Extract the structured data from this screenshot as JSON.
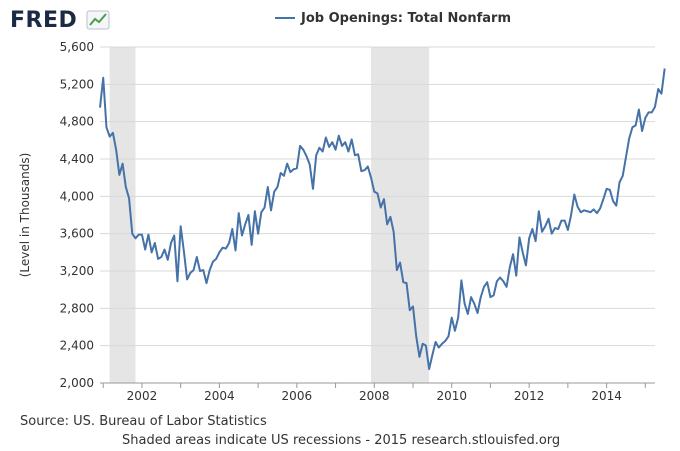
{
  "logo": {
    "text": "FRED",
    "icon": "line-chart-icon"
  },
  "legend": {
    "label": "Job Openings: Total Nonfarm",
    "color": "#4572a7"
  },
  "source_text": "Source: US. Bureau of Labor Statistics",
  "note_text": "Shaded areas indicate US recessions - 2015 research.stlouisfed.org",
  "chart_data": {
    "type": "line",
    "title": "",
    "xlabel": "",
    "ylabel": "(Level in Thousands)",
    "ylim": [
      2000,
      5600
    ],
    "yticks": [
      2000,
      2400,
      2800,
      3200,
      3600,
      4000,
      4400,
      4800,
      5200,
      5600
    ],
    "ytick_labels": [
      "2,000",
      "2,400",
      "2,800",
      "3,200",
      "3,600",
      "4,000",
      "4,400",
      "4,800",
      "5,200",
      "5,600"
    ],
    "xlim": [
      "2000-12",
      "2015-04"
    ],
    "xticks": [
      "2002",
      "2004",
      "2006",
      "2008",
      "2010",
      "2012",
      "2014"
    ],
    "grid": "horizontal",
    "line_color": "#4572a7",
    "recession_color": "#e5e5e5",
    "recessions": [
      {
        "start": "2001-03",
        "end": "2001-11"
      },
      {
        "start": "2007-12",
        "end": "2009-06"
      }
    ],
    "series": [
      {
        "name": "Job Openings: Total Nonfarm",
        "start": "2000-12",
        "frequency": "monthly",
        "values": [
          4950,
          5270,
          4740,
          4640,
          4680,
          4500,
          4230,
          4350,
          4100,
          3980,
          3600,
          3550,
          3590,
          3590,
          3430,
          3590,
          3400,
          3500,
          3330,
          3350,
          3430,
          3320,
          3500,
          3580,
          3090,
          3680,
          3410,
          3110,
          3180,
          3210,
          3350,
          3200,
          3210,
          3070,
          3210,
          3300,
          3330,
          3400,
          3450,
          3440,
          3500,
          3650,
          3420,
          3820,
          3580,
          3700,
          3800,
          3480,
          3840,
          3600,
          3830,
          3880,
          4100,
          3850,
          4050,
          4100,
          4250,
          4220,
          4350,
          4260,
          4290,
          4300,
          4540,
          4500,
          4430,
          4340,
          4080,
          4440,
          4520,
          4480,
          4630,
          4530,
          4580,
          4500,
          4650,
          4540,
          4580,
          4480,
          4610,
          4440,
          4450,
          4270,
          4280,
          4320,
          4200,
          4050,
          4030,
          3880,
          3970,
          3700,
          3780,
          3620,
          3210,
          3290,
          3080,
          3070,
          2780,
          2820,
          2500,
          2280,
          2420,
          2400,
          2150,
          2300,
          2440,
          2380,
          2420,
          2450,
          2500,
          2700,
          2560,
          2700,
          3100,
          2850,
          2740,
          2920,
          2850,
          2750,
          2920,
          3030,
          3080,
          2920,
          2940,
          3090,
          3130,
          3090,
          3030,
          3240,
          3380,
          3150,
          3560,
          3400,
          3260,
          3550,
          3650,
          3520,
          3840,
          3620,
          3680,
          3760,
          3600,
          3660,
          3650,
          3740,
          3740,
          3640,
          3800,
          4020,
          3890,
          3830,
          3850,
          3840,
          3830,
          3860,
          3820,
          3870,
          3970,
          4080,
          4070,
          3950,
          3900,
          4150,
          4220,
          4420,
          4620,
          4740,
          4760,
          4930,
          4700,
          4840,
          4900,
          4900,
          4960,
          5150,
          5100,
          5370
        ]
      }
    ]
  }
}
